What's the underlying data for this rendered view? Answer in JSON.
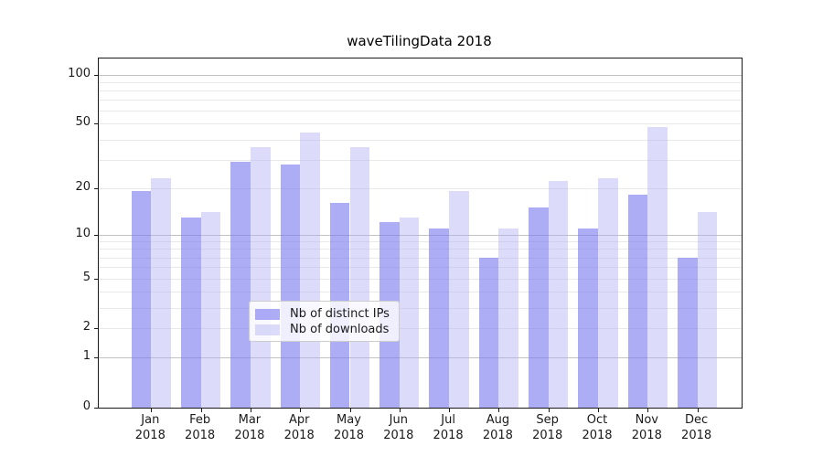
{
  "title": "waveTilingData 2018",
  "chart_data": {
    "type": "bar",
    "title": "waveTilingData 2018",
    "categories": [
      "Jan",
      "Feb",
      "Mar",
      "Apr",
      "May",
      "Jun",
      "Jul",
      "Aug",
      "Sep",
      "Oct",
      "Nov",
      "Dec"
    ],
    "year_label": "2018",
    "series": [
      {
        "name": "Nb of distinct IPs",
        "color": "rgba(122,122,240,0.62)",
        "solid_color": "#aaaaf4",
        "values": [
          19,
          13,
          29,
          28,
          16,
          12,
          11,
          7,
          15,
          11,
          18,
          7
        ]
      },
      {
        "name": "Nb of downloads",
        "color": "rgba(178,178,244,0.45)",
        "solid_color": "#dcdcfa",
        "values": [
          23,
          14,
          36,
          44,
          36,
          13,
          19,
          11,
          22,
          23,
          48,
          14
        ]
      }
    ],
    "yscale": "symlog (y proportional to ln(1+v))",
    "ylim": [
      0,
      125
    ],
    "ytick_labels": [
      "0",
      "1",
      "2",
      "5",
      "10",
      "20",
      "50",
      "100"
    ],
    "ytick_values": [
      0,
      1,
      2,
      5,
      10,
      20,
      50,
      100
    ],
    "grid_major_values": [
      1,
      10,
      100
    ],
    "grid_minor_values": [
      2,
      3,
      4,
      5,
      6,
      7,
      8,
      9,
      20,
      30,
      40,
      50,
      60,
      70,
      80,
      90
    ],
    "grid": "on",
    "legend_position": "bottom-center",
    "xlabel": "",
    "ylabel": ""
  }
}
